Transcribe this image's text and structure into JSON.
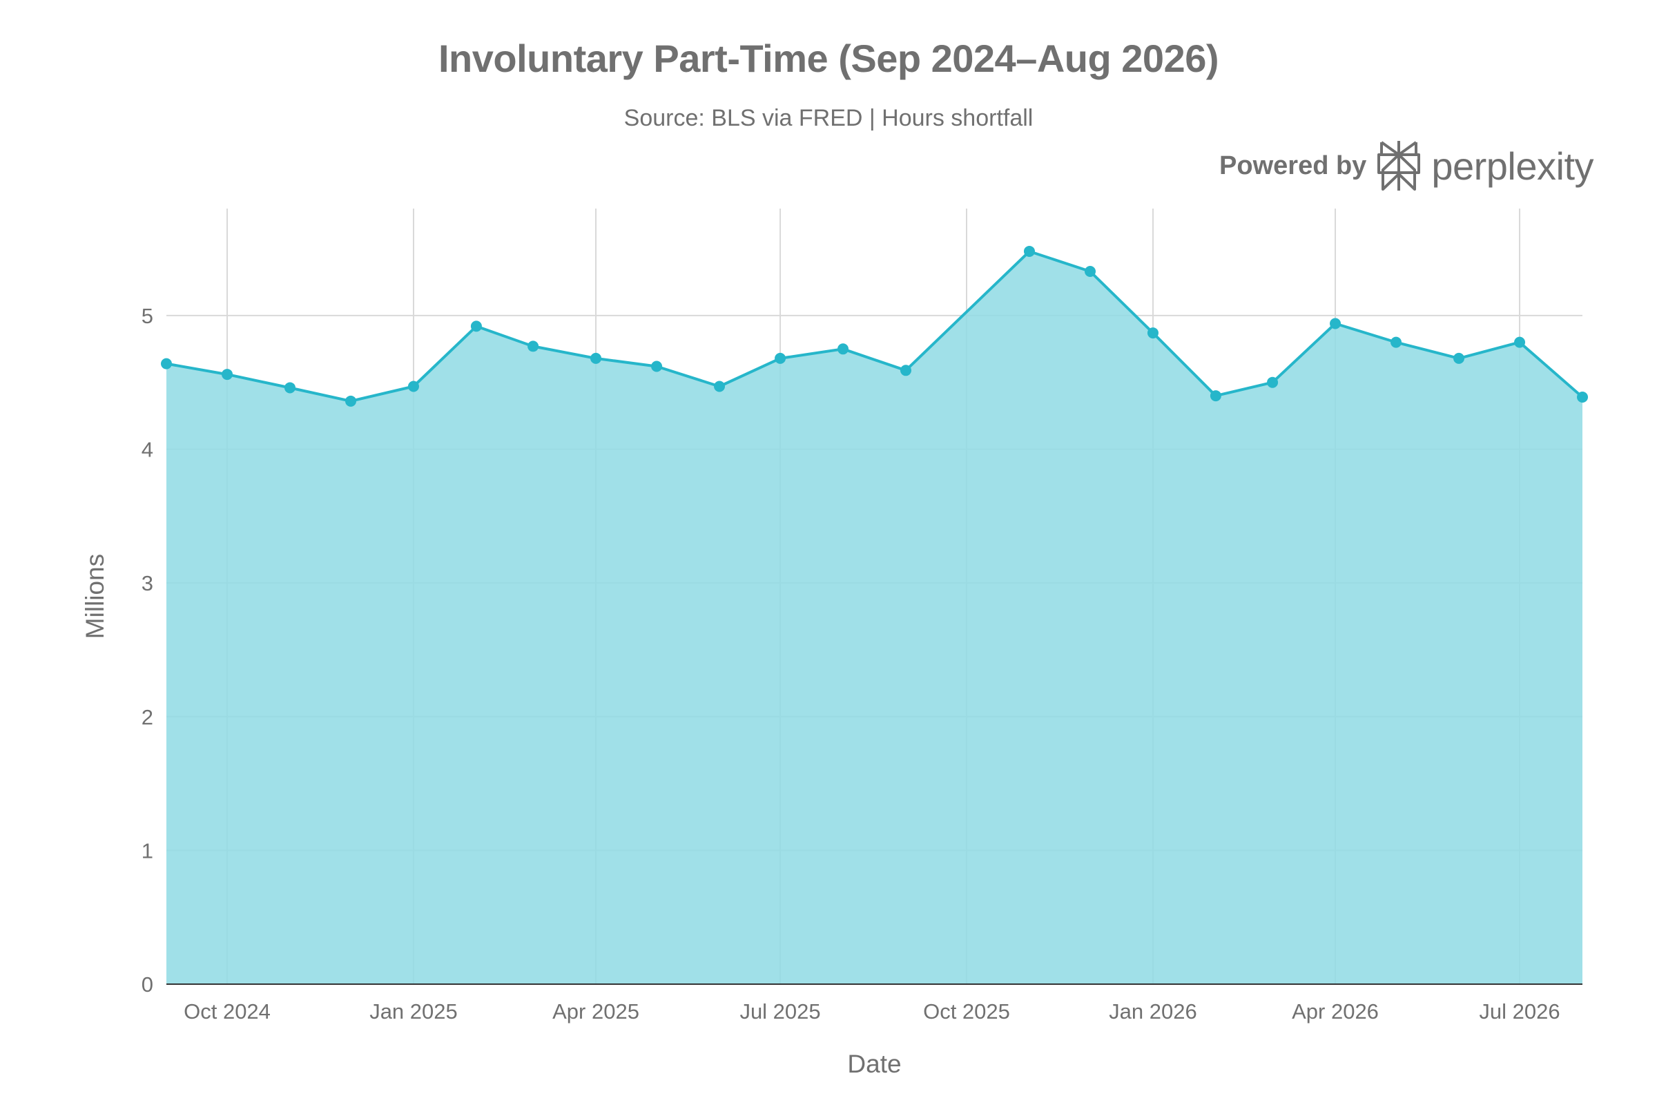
{
  "title": "Involuntary Part-Time (Sep 2024–Aug 2026)",
  "subtitle": "Source: BLS via FRED | Hours shortfall",
  "branding": {
    "prefix": "Powered by",
    "name": "perplexity",
    "logo_icon": "perplexity-logo-icon"
  },
  "colors": {
    "fill": "#8fdae4",
    "line": "#26b6ca",
    "marker": "#26b6ca",
    "grid": "#d9d9d9",
    "text": "#707070"
  },
  "chart_data": {
    "type": "area",
    "xlabel": "Date",
    "ylabel": "Millions",
    "ylim": [
      0,
      5.8
    ],
    "xlim": [
      "2024-09-01",
      "2026-08-01"
    ],
    "grid": true,
    "y_ticks": [
      0,
      1,
      2,
      3,
      4,
      5
    ],
    "x_ticks": [
      {
        "date": "2024-10-01",
        "label": "Oct 2024"
      },
      {
        "date": "2025-01-01",
        "label": "Jan 2025"
      },
      {
        "date": "2025-04-01",
        "label": "Apr 2025"
      },
      {
        "date": "2025-07-01",
        "label": "Jul 2025"
      },
      {
        "date": "2025-10-01",
        "label": "Oct 2025"
      },
      {
        "date": "2026-01-01",
        "label": "Jan 2026"
      },
      {
        "date": "2026-04-01",
        "label": "Apr 2026"
      },
      {
        "date": "2026-07-01",
        "label": "Jul 2026"
      }
    ],
    "x": [
      "2024-09-01",
      "2024-10-01",
      "2024-11-01",
      "2024-12-01",
      "2025-01-01",
      "2025-02-01",
      "2025-03-01",
      "2025-04-01",
      "2025-05-01",
      "2025-06-01",
      "2025-07-01",
      "2025-08-01",
      "2025-09-01",
      "2025-11-01",
      "2025-12-01",
      "2026-01-01",
      "2026-02-01",
      "2026-03-01",
      "2026-04-01",
      "2026-05-01",
      "2026-06-01",
      "2026-07-01",
      "2026-08-01"
    ],
    "y": [
      4.64,
      4.56,
      4.46,
      4.36,
      4.47,
      4.92,
      4.77,
      4.68,
      4.62,
      4.47,
      4.68,
      4.75,
      4.59,
      5.48,
      5.33,
      4.87,
      4.4,
      4.5,
      4.94,
      4.8,
      4.68,
      4.8,
      4.39
    ]
  }
}
